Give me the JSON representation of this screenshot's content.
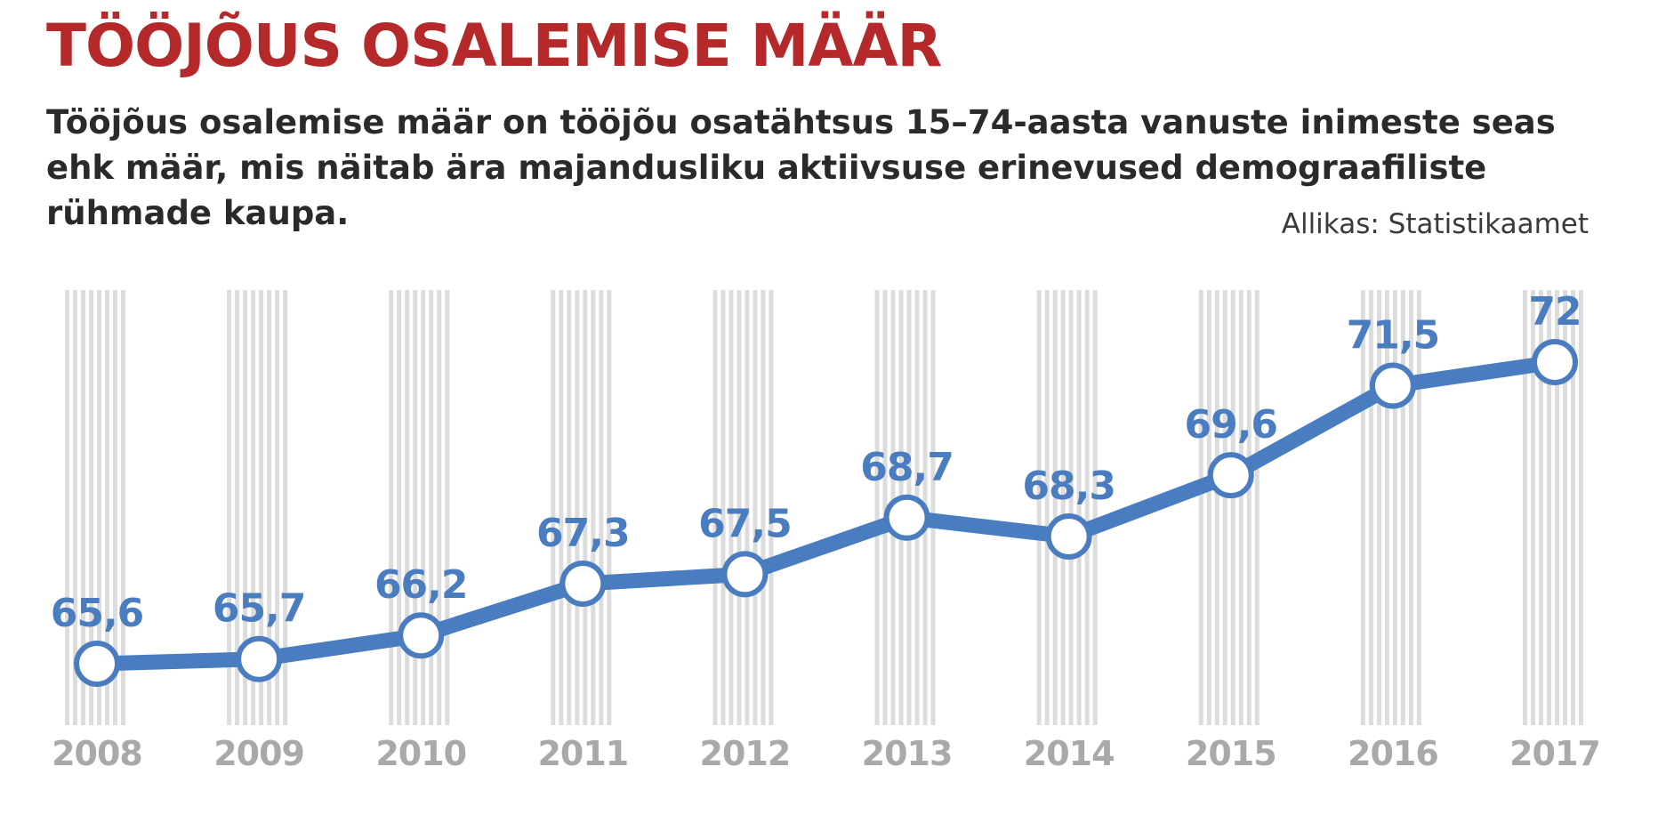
{
  "title": "TÖÖJÕUS OSALEMISE MÄÄR",
  "subtitle": "Tööjõus osalemise määr on tööjõu osatähtsus 15–74-aasta vanuste inimeste seas ehk määr, mis näitab ära majandusliku aktiivsuse erinevused demograafiliste rühmade kaupa.",
  "source": "Allikas: Statistikaamet",
  "colors": {
    "title": "#b5292b",
    "line": "#4a7cc0",
    "marker_fill": "#ffffff",
    "column_stripe": "#dcdcdc",
    "tick_label": "#a9a9a9"
  },
  "chart_data": {
    "type": "line",
    "title": "TÖÖJÕUS OSALEMISE MÄÄR",
    "categories": [
      "2008",
      "2009",
      "2010",
      "2011",
      "2012",
      "2013",
      "2014",
      "2015",
      "2016",
      "2017"
    ],
    "series": [
      {
        "values": [
          65.6,
          65.7,
          66.2,
          67.3,
          67.5,
          68.7,
          68.3,
          69.6,
          71.5,
          72
        ],
        "labels": [
          "65,6",
          "65,7",
          "66,2",
          "67,3",
          "67,5",
          "68,7",
          "68,3",
          "69,6",
          "71,5",
          "72"
        ]
      }
    ],
    "xlabel": "",
    "ylabel": "",
    "grid": false,
    "legend": "none"
  }
}
